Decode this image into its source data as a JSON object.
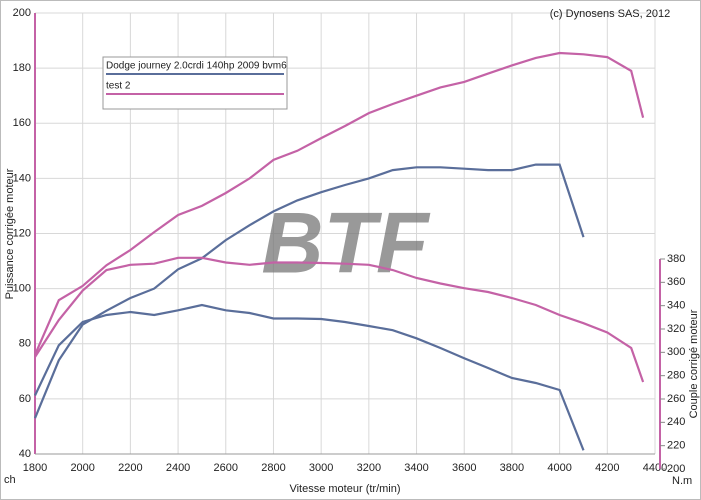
{
  "chart_data": {
    "type": "line",
    "title": "(c) Dynosens SAS, 2012",
    "watermark": "BTF",
    "x_label": "Vitesse moteur (tr/min)",
    "y_label": "Puissance corrigée moteur",
    "y2_label": "Couple corrigé moteur",
    "y_unit": "ch",
    "y2_unit": "N.m",
    "x": [
      1800,
      1900,
      2000,
      2100,
      2200,
      2300,
      2400,
      2500,
      2600,
      2700,
      2800,
      2900,
      3000,
      3100,
      3200,
      3300,
      3400,
      3500,
      3600,
      3700,
      3800,
      3900,
      4000,
      4100,
      4200,
      4300,
      4350
    ],
    "series": [
      {
        "name": "Dodge journey 2.0crdi 140hp 2009 bvm6",
        "color": "#5a6e9a",
        "values": [
          53,
          74,
          87,
          92,
          96.6,
          100,
          107,
          111,
          117.6,
          123,
          128,
          132,
          135,
          137.6,
          140,
          143,
          144,
          144,
          143.5,
          143,
          143,
          145,
          145,
          118.7,
          null,
          null,
          null
        ]
      },
      {
        "name": "test 2",
        "color": "#c462a6",
        "values": [
          76,
          95.8,
          101,
          108.5,
          114,
          120.5,
          126.7,
          130,
          134.7,
          140,
          146.7,
          150,
          154.6,
          159,
          163.7,
          167,
          170,
          173,
          175,
          178,
          181,
          183.7,
          185.5,
          185,
          184,
          179,
          162
        ]
      },
      {
        "color": "#5a6e9a",
        "axis": "y2",
        "values": [
          263,
          306,
          326,
          332,
          334.6,
          332,
          336,
          340.6,
          336,
          333.7,
          329,
          329,
          328.6,
          326,
          322.6,
          319,
          312,
          303.7,
          295,
          286.6,
          278,
          273.7,
          267.7,
          216,
          null,
          null,
          null
        ]
      },
      {
        "color": "#c462a6",
        "axis": "y2",
        "values": [
          296,
          327.7,
          353,
          370.6,
          375,
          376,
          381,
          381,
          377,
          375,
          377,
          377,
          376.6,
          376,
          375,
          370.6,
          363.7,
          359,
          355,
          351.7,
          346.6,
          340.6,
          332,
          325,
          317,
          303.7,
          274.6
        ]
      }
    ],
    "xlim": [
      1800,
      4400
    ],
    "xticks": [
      1800,
      2000,
      2200,
      2400,
      2600,
      2800,
      3000,
      3200,
      3400,
      3600,
      3800,
      4000,
      4200,
      4400
    ],
    "ylim": [
      40,
      200
    ],
    "yticks": [
      40,
      60,
      80,
      100,
      120,
      140,
      160,
      180,
      200
    ],
    "y2lim": [
      200,
      380
    ],
    "y2ticks": [
      200,
      220,
      240,
      260,
      280,
      300,
      320,
      340,
      360,
      380
    ],
    "grid": true
  }
}
